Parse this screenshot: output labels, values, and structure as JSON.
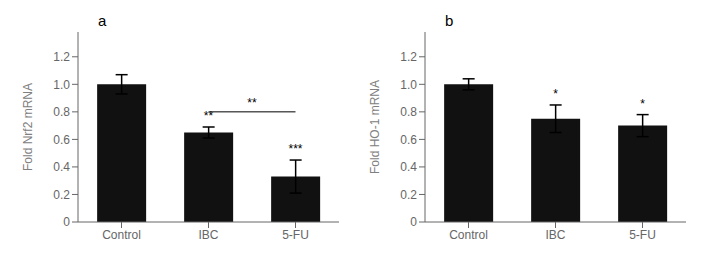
{
  "chart_data": [
    {
      "type": "bar",
      "title": "a",
      "categories": [
        "Control",
        "IBC",
        "5-FU"
      ],
      "values": [
        1.0,
        0.65,
        0.33
      ],
      "errors": [
        0.07,
        0.04,
        0.12
      ],
      "ylabel": "Fold Nrf2 mRNA",
      "ylim": [
        0,
        1.38
      ],
      "yticks": [
        0,
        0.2,
        0.4,
        0.6,
        0.8,
        {
          "value": 1.0,
          "label": "1.0"
        },
        1.2
      ],
      "color": "#111111",
      "grid": false,
      "annotations": [
        {
          "type": "text",
          "category": "IBC",
          "text": "**"
        },
        {
          "type": "text",
          "category": "5-FU",
          "text": "***"
        },
        {
          "type": "bracket",
          "from": "IBC",
          "to": "5-FU",
          "y": 0.8,
          "text": "**"
        }
      ]
    },
    {
      "type": "bar",
      "title": "b",
      "categories": [
        "Control",
        "IBC",
        "5-FU"
      ],
      "values": [
        1.0,
        0.75,
        0.7
      ],
      "errors": [
        0.04,
        0.1,
        0.08
      ],
      "ylabel": "Fold HO-1 mRNA",
      "ylim": [
        0,
        1.38
      ],
      "yticks": [
        0,
        0.2,
        0.4,
        0.6,
        0.8,
        {
          "value": 1.0,
          "label": "1.0"
        },
        1.2
      ],
      "color": "#111111",
      "grid": false,
      "annotations": [
        {
          "type": "text",
          "category": "IBC",
          "text": "*"
        },
        {
          "type": "text",
          "category": "5-FU",
          "text": "*"
        }
      ]
    }
  ]
}
